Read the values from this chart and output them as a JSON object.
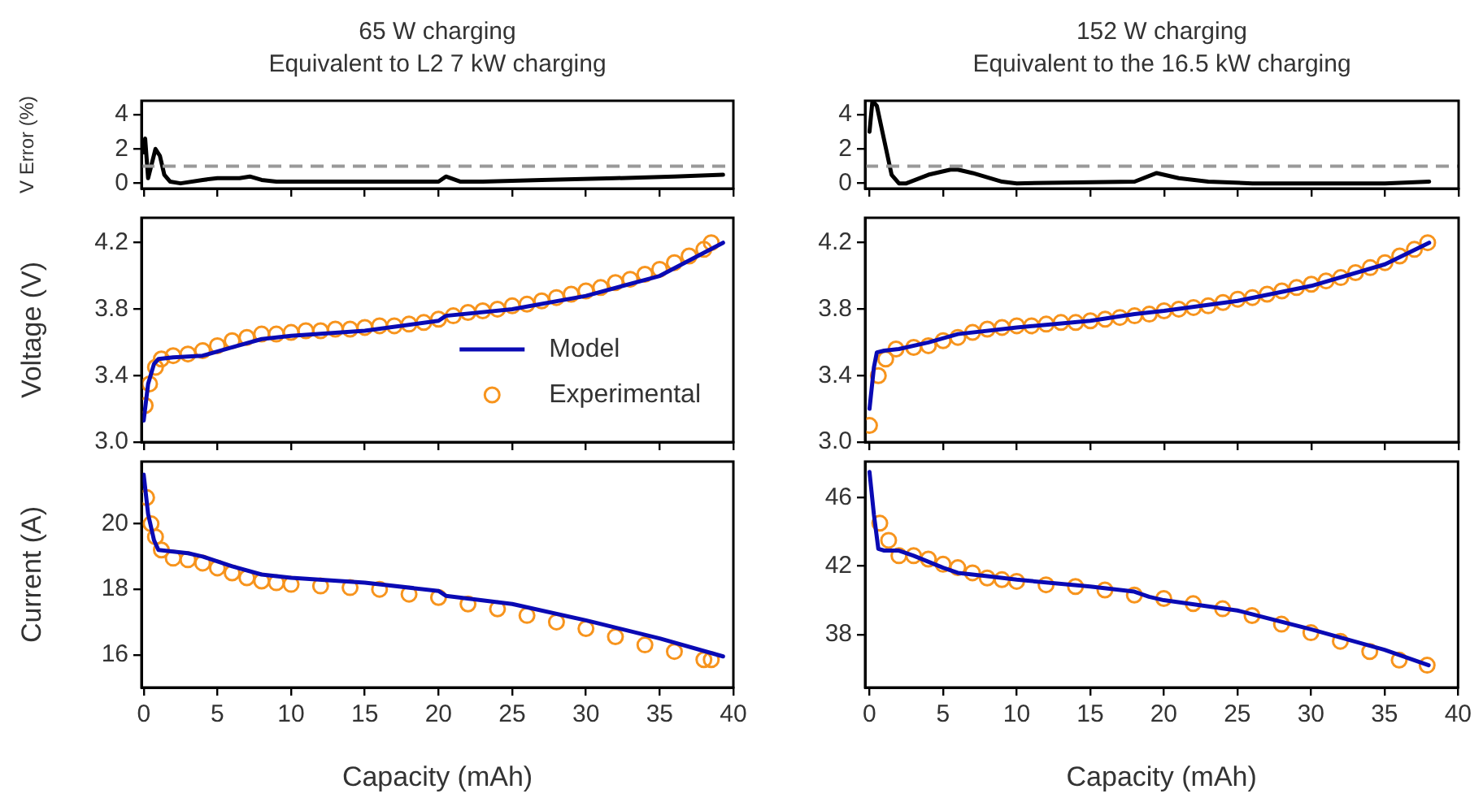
{
  "chart_data": [
    {
      "type": "line",
      "title": "65 W charging\nEquivalent to L2 7 kW charging",
      "ylabel": "V Error (%)",
      "xlim": [
        -0.15,
        40
      ],
      "xticks": [
        0,
        5,
        10,
        15,
        20,
        25,
        30,
        35,
        40
      ],
      "ylim": [
        -0.3,
        4.8
      ],
      "yticks": [
        0,
        2,
        4
      ],
      "tick_labels": "y",
      "ref_lines": [
        {
          "axis": "y",
          "value": 1,
          "color": "#999999",
          "line_style": "dashed"
        }
      ],
      "series": [
        {
          "type": "line",
          "color": "#000000",
          "marker": "none",
          "x": [
            0,
            0.1,
            0.3,
            0.8,
            1.1,
            1.4,
            1.8,
            2.5,
            4,
            5,
            6.5,
            7.2,
            8,
            9,
            15,
            20,
            20.5,
            21.5,
            23,
            27,
            32,
            36,
            39.3
          ],
          "values": [
            1.8,
            2.6,
            0.3,
            2.0,
            1.6,
            0.5,
            0.1,
            0,
            0.2,
            0.3,
            0.3,
            0.4,
            0.2,
            0.1,
            0.1,
            0.1,
            0.4,
            0.1,
            0.1,
            0.2,
            0.3,
            0.4,
            0.5
          ]
        }
      ]
    },
    {
      "type": "line",
      "title": "152 W charging\nEquivalent to the 16.5 kW charging",
      "xlim": [
        -0.3,
        40
      ],
      "xticks": [
        0,
        5,
        10,
        15,
        20,
        25,
        30,
        35,
        40
      ],
      "ylim": [
        -0.3,
        4.8
      ],
      "yticks": [
        0,
        2,
        4
      ],
      "tick_labels": "y",
      "ref_lines": [
        {
          "axis": "y",
          "value": 1,
          "color": "#999999",
          "line_style": "dashed"
        }
      ],
      "series": [
        {
          "type": "line",
          "color": "#000000",
          "marker": "none",
          "x": [
            0,
            0.2,
            0.5,
            1,
            1.5,
            2,
            2.5,
            4,
            5.5,
            6,
            7,
            9,
            10,
            18,
            19.5,
            21,
            23,
            26,
            35,
            38
          ],
          "values": [
            3.0,
            4.8,
            4.5,
            2.5,
            0.5,
            0,
            0,
            0.5,
            0.8,
            0.8,
            0.6,
            0.1,
            0,
            0.1,
            0.6,
            0.3,
            0.1,
            0,
            0,
            0.1
          ]
        }
      ]
    },
    {
      "type": "line",
      "ylabel": "Voltage (V)",
      "xlim": [
        -0.15,
        40
      ],
      "xticks": [
        0,
        5,
        10,
        15,
        20,
        25,
        30,
        35,
        40
      ],
      "ylim": [
        3.0,
        4.35
      ],
      "yticks": [
        {
          "value": 3.0,
          "label": "3.0"
        },
        3.4,
        3.8,
        4.2
      ],
      "tick_labels": "y",
      "legend": "bottom right",
      "series": [
        {
          "name": "Model",
          "type": "line",
          "color": "#0a0ab4",
          "marker": "none",
          "x": [
            0,
            0.3,
            0.7,
            1,
            2,
            4,
            6,
            8,
            10,
            15,
            20,
            20.5,
            25,
            30,
            35,
            39.3
          ],
          "values": [
            3.13,
            3.35,
            3.47,
            3.5,
            3.51,
            3.52,
            3.57,
            3.62,
            3.64,
            3.67,
            3.73,
            3.76,
            3.8,
            3.88,
            4.0,
            4.2
          ]
        },
        {
          "name": "Experimental",
          "type": "scatter",
          "color": "#f7941d",
          "marker": "circle",
          "x": [
            0.1,
            0.4,
            0.8,
            1.2,
            2,
            3,
            4,
            5,
            6,
            7,
            8,
            9,
            10,
            11,
            12,
            13,
            14,
            15,
            16,
            17,
            18,
            19,
            20,
            21,
            22,
            23,
            24,
            25,
            26,
            27,
            28,
            29,
            30,
            31,
            32,
            33,
            34,
            35,
            36,
            37,
            38,
            38.5
          ],
          "values": [
            3.22,
            3.35,
            3.45,
            3.5,
            3.52,
            3.53,
            3.55,
            3.58,
            3.61,
            3.63,
            3.65,
            3.65,
            3.66,
            3.67,
            3.67,
            3.68,
            3.68,
            3.69,
            3.7,
            3.7,
            3.71,
            3.72,
            3.74,
            3.76,
            3.78,
            3.79,
            3.8,
            3.82,
            3.83,
            3.85,
            3.87,
            3.89,
            3.91,
            3.93,
            3.96,
            3.98,
            4.01,
            4.04,
            4.08,
            4.12,
            4.16,
            4.2
          ]
        }
      ]
    },
    {
      "type": "line",
      "xlim": [
        -0.3,
        40
      ],
      "xticks": [
        0,
        5,
        10,
        15,
        20,
        25,
        30,
        35,
        40
      ],
      "ylim": [
        3.0,
        4.35
      ],
      "yticks": [
        {
          "value": 3.0,
          "label": "3.0"
        },
        3.4,
        3.8,
        4.2
      ],
      "tick_labels": "y",
      "series": [
        {
          "type": "line",
          "color": "#0a0ab4",
          "marker": "none",
          "x": [
            0,
            0.3,
            0.5,
            1,
            2,
            4,
            6,
            10,
            15,
            18,
            20,
            25,
            30,
            35,
            38
          ],
          "values": [
            3.2,
            3.45,
            3.54,
            3.55,
            3.56,
            3.6,
            3.65,
            3.69,
            3.73,
            3.77,
            3.79,
            3.85,
            3.94,
            4.07,
            4.2
          ]
        },
        {
          "type": "scatter",
          "color": "#f7941d",
          "marker": "circle",
          "x": [
            0,
            0.6,
            1.1,
            1.8,
            3,
            4,
            5,
            6,
            7,
            8,
            9,
            10,
            11,
            12,
            13,
            14,
            15,
            16,
            17,
            18,
            19,
            20,
            21,
            22,
            23,
            24,
            25,
            26,
            27,
            28,
            29,
            30,
            31,
            32,
            33,
            34,
            35,
            36,
            37,
            37.9
          ],
          "values": [
            3.1,
            3.4,
            3.5,
            3.56,
            3.57,
            3.58,
            3.61,
            3.63,
            3.66,
            3.68,
            3.69,
            3.7,
            3.7,
            3.71,
            3.72,
            3.72,
            3.73,
            3.74,
            3.75,
            3.76,
            3.77,
            3.79,
            3.8,
            3.81,
            3.82,
            3.84,
            3.86,
            3.87,
            3.89,
            3.91,
            3.93,
            3.95,
            3.97,
            3.99,
            4.02,
            4.05,
            4.08,
            4.12,
            4.16,
            4.2
          ]
        }
      ]
    },
    {
      "type": "line",
      "ylabel": "Current (A)",
      "xlabel": "Capacity (mAh)",
      "xlim": [
        -0.15,
        40
      ],
      "xticks": [
        0,
        5,
        10,
        15,
        20,
        25,
        30,
        35,
        40
      ],
      "ylim": [
        15.0,
        21.9
      ],
      "yticks": [
        16,
        18,
        20
      ],
      "series": [
        {
          "type": "line",
          "color": "#0a0ab4",
          "marker": "none",
          "x": [
            0,
            0.3,
            0.7,
            1,
            3,
            4,
            6,
            8,
            10,
            15,
            20,
            20.5,
            25,
            30,
            35,
            39.3
          ],
          "values": [
            21.5,
            20.3,
            19.5,
            19.2,
            19.1,
            19.0,
            18.7,
            18.45,
            18.35,
            18.2,
            17.95,
            17.8,
            17.55,
            17.05,
            16.5,
            15.95
          ]
        },
        {
          "type": "scatter",
          "color": "#f7941d",
          "marker": "circle",
          "x": [
            0.2,
            0.5,
            0.8,
            1.2,
            2,
            3,
            4,
            5,
            6,
            7,
            8,
            9,
            10,
            12,
            14,
            16,
            18,
            20,
            22,
            24,
            26,
            28,
            30,
            32,
            34,
            36,
            38,
            38.5
          ],
          "values": [
            20.8,
            20.0,
            19.6,
            19.2,
            18.95,
            18.9,
            18.8,
            18.65,
            18.5,
            18.35,
            18.25,
            18.2,
            18.15,
            18.1,
            18.05,
            18.0,
            17.85,
            17.75,
            17.55,
            17.4,
            17.2,
            17.0,
            16.8,
            16.55,
            16.3,
            16.1,
            15.85,
            15.85
          ]
        }
      ]
    },
    {
      "type": "line",
      "xlabel": "Capacity (mAh)",
      "xlim": [
        -0.3,
        40
      ],
      "xticks": [
        0,
        5,
        10,
        15,
        20,
        25,
        30,
        35,
        40
      ],
      "ylim": [
        34.9,
        48.1
      ],
      "yticks": [
        38,
        42,
        46
      ],
      "series": [
        {
          "type": "line",
          "color": "#0a0ab4",
          "marker": "none",
          "x": [
            0,
            0.3,
            0.6,
            1,
            2,
            3,
            5,
            6,
            8,
            10,
            15,
            18,
            19,
            20,
            25,
            30,
            35,
            38
          ],
          "values": [
            47.5,
            45,
            43,
            42.9,
            42.9,
            42.6,
            41.9,
            41.6,
            41.4,
            41.2,
            40.8,
            40.5,
            40.2,
            40.0,
            39.4,
            38.3,
            37.1,
            36.2
          ]
        },
        {
          "type": "scatter",
          "color": "#f7941d",
          "marker": "circle",
          "x": [
            0.7,
            1.3,
            2,
            3,
            4,
            5,
            6,
            7,
            8,
            9,
            10,
            12,
            14,
            16,
            18,
            20,
            22,
            24,
            26,
            28,
            30,
            32,
            34,
            36,
            37.9
          ],
          "values": [
            44.5,
            43.5,
            42.6,
            42.6,
            42.4,
            42.1,
            41.9,
            41.6,
            41.3,
            41.2,
            41.1,
            40.9,
            40.8,
            40.6,
            40.3,
            40.1,
            39.8,
            39.5,
            39.1,
            38.6,
            38.1,
            37.6,
            37.0,
            36.5,
            36.2
          ]
        }
      ]
    }
  ]
}
